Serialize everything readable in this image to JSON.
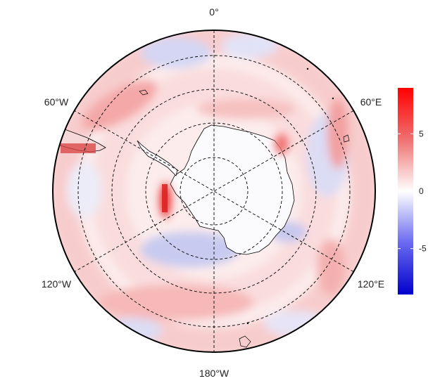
{
  "map": {
    "projection": "south-polar-stereographic",
    "longitude_labels": [
      {
        "id": "0",
        "text": "0°"
      },
      {
        "id": "60E",
        "text": "60°E"
      },
      {
        "id": "120E",
        "text": "120°E"
      },
      {
        "id": "180",
        "text": "180°W"
      },
      {
        "id": "120W",
        "text": "120°W"
      },
      {
        "id": "60W",
        "text": "60°W"
      }
    ],
    "meridian_lines": "dashed",
    "latitude_circles": "dashed",
    "colors": {
      "negative": "#0000cc",
      "zero": "#ffffff",
      "positive": "#ff0000",
      "coastline": "#000000"
    }
  },
  "colorbar": {
    "range": [
      -9,
      9
    ],
    "ticks": [
      {
        "value": 5,
        "label": "5"
      },
      {
        "value": 0,
        "label": "0"
      },
      {
        "value": -5,
        "label": "-5"
      }
    ]
  }
}
